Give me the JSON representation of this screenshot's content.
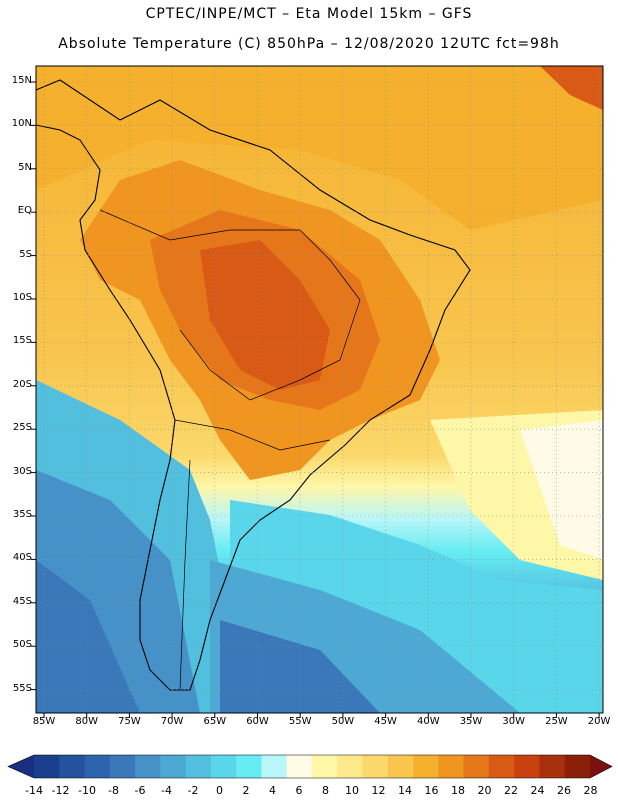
{
  "header": {
    "title_line1": "CPTEC/INPE/MCT –  Eta Model 15km – GFS",
    "title_line2": "Absolute Temperature (C) 850hPa – 12/08/2020 12UTC fct=98h"
  },
  "axes": {
    "lat_labels": [
      "15N",
      "10N",
      "5N",
      "EQ",
      "5S",
      "10S",
      "15S",
      "20S",
      "25S",
      "30S",
      "35S",
      "40S",
      "45S",
      "50S",
      "55S"
    ],
    "lon_labels": [
      "85W",
      "80W",
      "75W",
      "70W",
      "65W",
      "60W",
      "55W",
      "50W",
      "45W",
      "40W",
      "35W",
      "30W",
      "25W",
      "20W"
    ]
  },
  "colorbar": {
    "labels": [
      "-14",
      "-12",
      "-10",
      "-8",
      "-6",
      "-4",
      "-2",
      "0",
      "2",
      "4",
      "6",
      "8",
      "10",
      "12",
      "14",
      "16",
      "18",
      "20",
      "22",
      "24",
      "26",
      "28"
    ],
    "colors": [
      "#1a3f8f",
      "#24529e",
      "#2e64ad",
      "#3a78ba",
      "#4691c8",
      "#4ea8d4",
      "#53bfdf",
      "#5ad6ea",
      "#66ecf2",
      "#b9f6f8",
      "#fffbe6",
      "#fff7a8",
      "#fde98a",
      "#fbd86a",
      "#f8c54e",
      "#f5b12e",
      "#ef9520",
      "#e5761a",
      "#d95a14",
      "#c8420f",
      "#a8300c",
      "#8a2009"
    ],
    "end_low": "#1b2f80",
    "end_high": "#7a1010"
  },
  "legend": {
    "ocean_color": "#3f8fcc",
    "land_line_color": "#000000"
  }
}
